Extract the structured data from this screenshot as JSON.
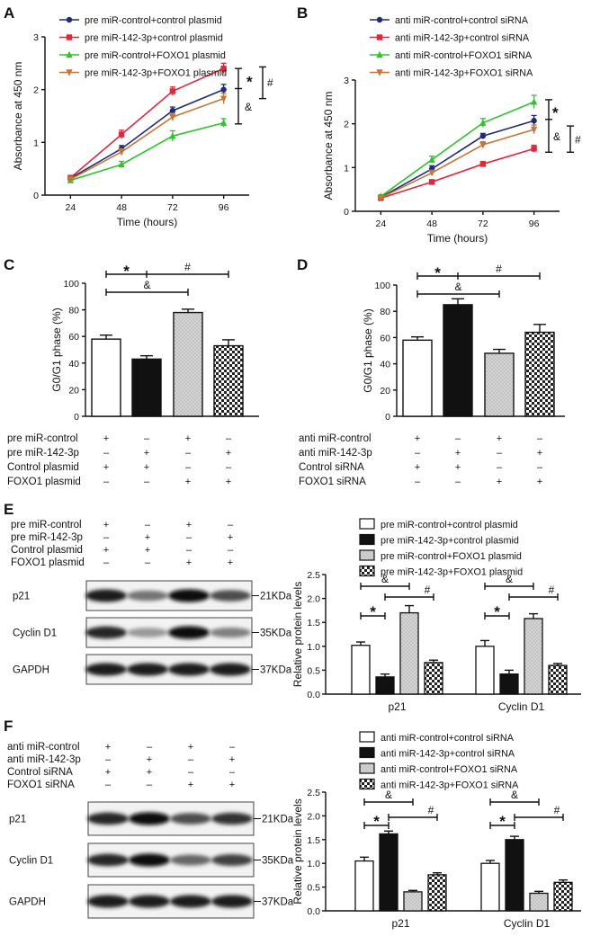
{
  "figure": {
    "panels": {
      "A": {
        "label": "A"
      },
      "B": {
        "label": "B"
      },
      "C": {
        "label": "C"
      },
      "D": {
        "label": "D"
      },
      "E": {
        "label": "E"
      },
      "F": {
        "label": "F"
      }
    },
    "colors": {
      "s1": "#1f2a7a",
      "s2": "#e0283a",
      "s3": "#2ec42e",
      "s4": "#c87436"
    },
    "blots": {
      "E": {
        "conditions": [
          {
            "label": "pre miR-control",
            "signs": [
              "+",
              "–",
              "+",
              "–"
            ]
          },
          {
            "label": "pre miR-142-3p",
            "signs": [
              "–",
              "+",
              "–",
              "+"
            ]
          },
          {
            "label": "Control plasmid",
            "signs": [
              "+",
              "+",
              "–",
              "–"
            ]
          },
          {
            "label": "FOXO1 plasmid",
            "signs": [
              "–",
              "–",
              "+",
              "+"
            ]
          }
        ],
        "bands": [
          {
            "label": "p21",
            "kda": "21KDa",
            "intensity": [
              0.9,
              0.55,
              0.95,
              0.7
            ]
          },
          {
            "label": "Cyclin D1",
            "kda": "35KDa",
            "intensity": [
              0.85,
              0.4,
              0.95,
              0.5
            ]
          },
          {
            "label": "GAPDH",
            "kda": "37KDa",
            "intensity": [
              0.9,
              0.9,
              0.9,
              0.9
            ]
          }
        ]
      },
      "F": {
        "conditions": [
          {
            "label": "anti miR-control",
            "signs": [
              "+",
              "–",
              "+",
              "–"
            ]
          },
          {
            "label": "anti miR-142-3p",
            "signs": [
              "–",
              "+",
              "–",
              "+"
            ]
          },
          {
            "label": "Control siRNA",
            "signs": [
              "+",
              "+",
              "–",
              "–"
            ]
          },
          {
            "label": "FOXO1 siRNA",
            "signs": [
              "–",
              "–",
              "+",
              "+"
            ]
          }
        ],
        "bands": [
          {
            "label": "p21",
            "kda": "21KDa",
            "intensity": [
              0.85,
              0.95,
              0.7,
              0.8
            ]
          },
          {
            "label": "Cyclin D1",
            "kda": "35KDa",
            "intensity": [
              0.85,
              0.95,
              0.6,
              0.75
            ]
          },
          {
            "label": "GAPDH",
            "kda": "37KDa",
            "intensity": [
              0.9,
              0.9,
              0.9,
              0.9
            ]
          }
        ]
      }
    }
  },
  "chart_data": [
    {
      "id": "A",
      "type": "line",
      "xlabel": "Time (hours)",
      "ylabel": "Absorbance at 450 nm",
      "x": [
        24,
        48,
        72,
        96
      ],
      "xlim": [
        12,
        108
      ],
      "ylim": [
        0,
        3
      ],
      "yticks": [
        0,
        1,
        2,
        3
      ],
      "series": [
        {
          "name": "pre miR-control+control plasmid",
          "color": "#1f2a7a",
          "marker": "circle",
          "values": [
            0.32,
            0.88,
            1.6,
            2.0
          ],
          "errors": [
            0.04,
            0.06,
            0.07,
            0.1
          ]
        },
        {
          "name": "pre miR-142-3p+control plasmid",
          "color": "#e0283a",
          "marker": "square",
          "values": [
            0.33,
            1.15,
            1.97,
            2.4
          ],
          "errors": [
            0.04,
            0.08,
            0.08,
            0.1
          ]
        },
        {
          "name": "pre miR-control+FOXO1 plasmid",
          "color": "#2ec42e",
          "marker": "triangle",
          "values": [
            0.28,
            0.58,
            1.12,
            1.37
          ],
          "errors": [
            0.04,
            0.06,
            0.1,
            0.08
          ]
        },
        {
          "name": "pre miR-142-3p+FOXO1 plasmid",
          "color": "#c87436",
          "marker": "triangle-down",
          "values": [
            0.3,
            0.82,
            1.48,
            1.83
          ],
          "errors": [
            0.04,
            0.06,
            0.07,
            0.1
          ]
        }
      ],
      "annotations": [
        "*",
        "&",
        "#"
      ]
    },
    {
      "id": "B",
      "type": "line",
      "xlabel": "Time (hours)",
      "ylabel": "Absorbance at 450 nm",
      "x": [
        24,
        48,
        72,
        96
      ],
      "xlim": [
        12,
        108
      ],
      "ylim": [
        0,
        3
      ],
      "yticks": [
        0,
        1,
        2,
        3
      ],
      "series": [
        {
          "name": "anti miR-control+control siRNA",
          "color": "#1f2a7a",
          "marker": "circle",
          "values": [
            0.32,
            0.97,
            1.72,
            2.07
          ],
          "errors": [
            0.04,
            0.07,
            0.06,
            0.12
          ]
        },
        {
          "name": "anti miR-142-3p+control siRNA",
          "color": "#e0283a",
          "marker": "square",
          "values": [
            0.3,
            0.67,
            1.08,
            1.43
          ],
          "errors": [
            0.04,
            0.05,
            0.06,
            0.08
          ]
        },
        {
          "name": "anti miR-control+FOXO1 siRNA",
          "color": "#2ec42e",
          "marker": "triangle",
          "values": [
            0.34,
            1.18,
            2.02,
            2.5
          ],
          "errors": [
            0.04,
            0.08,
            0.1,
            0.15
          ]
        },
        {
          "name": "anti miR-142-3p+FOXO1 siRNA",
          "color": "#c87436",
          "marker": "triangle-down",
          "values": [
            0.31,
            0.88,
            1.52,
            1.87
          ],
          "errors": [
            0.04,
            0.06,
            0.07,
            0.1
          ]
        }
      ],
      "annotations": [
        "*",
        "&",
        "#"
      ]
    },
    {
      "id": "C",
      "type": "bar",
      "ylabel": "G0/G1 phase (%)",
      "ylim": [
        0,
        100
      ],
      "yticks": [
        0,
        20,
        40,
        60,
        80,
        100
      ],
      "values": [
        58,
        43,
        78,
        53
      ],
      "errors": [
        3,
        2.5,
        2.5,
        4.5
      ],
      "fills": [
        "white",
        "black",
        "dotted",
        "checker"
      ],
      "conditions": [
        {
          "label": "pre miR-control",
          "signs": [
            "+",
            "–",
            "+",
            "–"
          ]
        },
        {
          "label": "pre miR-142-3p",
          "signs": [
            "–",
            "+",
            "–",
            "+"
          ]
        },
        {
          "label": "Control plasmid",
          "signs": [
            "+",
            "+",
            "–",
            "–"
          ]
        },
        {
          "label": "FOXO1 plasmid",
          "signs": [
            "–",
            "–",
            "+",
            "+"
          ]
        }
      ],
      "annotations": [
        "*",
        "#",
        "&"
      ]
    },
    {
      "id": "D",
      "type": "bar",
      "ylabel": "G0/G1 phase (%)",
      "ylim": [
        0,
        100
      ],
      "yticks": [
        0,
        20,
        40,
        60,
        80,
        100
      ],
      "values": [
        58,
        85,
        48,
        64
      ],
      "errors": [
        2.5,
        4.5,
        3,
        6
      ],
      "fills": [
        "white",
        "black",
        "dotted",
        "checker"
      ],
      "conditions": [
        {
          "label": "anti miR-control",
          "signs": [
            "+",
            "–",
            "+",
            "–"
          ]
        },
        {
          "label": "anti miR-142-3p",
          "signs": [
            "–",
            "+",
            "–",
            "+"
          ]
        },
        {
          "label": "Control siRNA",
          "signs": [
            "+",
            "+",
            "–",
            "–"
          ]
        },
        {
          "label": "FOXO1 siRNA",
          "signs": [
            "–",
            "–",
            "+",
            "+"
          ]
        }
      ],
      "annotations": [
        "*",
        "#",
        "&"
      ]
    },
    {
      "id": "E",
      "type": "bar",
      "ylabel": "Relative protein levels",
      "ylim": [
        0,
        2.5
      ],
      "yticks": [
        0.0,
        0.5,
        1.0,
        1.5,
        2.0,
        2.5
      ],
      "categories": [
        "p21",
        "Cyclin D1"
      ],
      "series": [
        {
          "name": "pre miR-control+control plasmid",
          "fill": "white",
          "values": [
            1.02,
            1.0
          ],
          "errors": [
            0.07,
            0.12
          ]
        },
        {
          "name": "pre miR-142-3p+control plasmid",
          "fill": "black",
          "values": [
            0.36,
            0.42
          ],
          "errors": [
            0.06,
            0.08
          ]
        },
        {
          "name": "pre miR-control+FOXO1 plasmid",
          "fill": "dotted",
          "values": [
            1.7,
            1.58
          ],
          "errors": [
            0.15,
            0.1
          ]
        },
        {
          "name": "pre miR-142-3p+FOXO1 plasmid",
          "fill": "checker",
          "values": [
            0.66,
            0.6
          ],
          "errors": [
            0.05,
            0.04
          ]
        }
      ],
      "annotations": [
        "*",
        "&",
        "#"
      ]
    },
    {
      "id": "F",
      "type": "bar",
      "ylabel": "Relative protein levels",
      "ylim": [
        0,
        2.5
      ],
      "yticks": [
        0.0,
        0.5,
        1.0,
        1.5,
        2.0,
        2.5
      ],
      "categories": [
        "p21",
        "Cyclin D1"
      ],
      "series": [
        {
          "name": "anti miR-control+control siRNA",
          "fill": "white",
          "values": [
            1.05,
            1.0
          ],
          "errors": [
            0.08,
            0.06
          ]
        },
        {
          "name": "anti miR-142-3p+control siRNA",
          "fill": "black",
          "values": [
            1.62,
            1.5
          ],
          "errors": [
            0.06,
            0.07
          ]
        },
        {
          "name": "anti miR-control+FOXO1 siRNA",
          "fill": "dotted",
          "values": [
            0.4,
            0.37
          ],
          "errors": [
            0.03,
            0.04
          ]
        },
        {
          "name": "anti miR-142-3p+FOXO1 siRNA",
          "fill": "checker",
          "values": [
            0.76,
            0.6
          ],
          "errors": [
            0.04,
            0.05
          ]
        }
      ],
      "annotations": [
        "*",
        "&",
        "#"
      ]
    }
  ]
}
